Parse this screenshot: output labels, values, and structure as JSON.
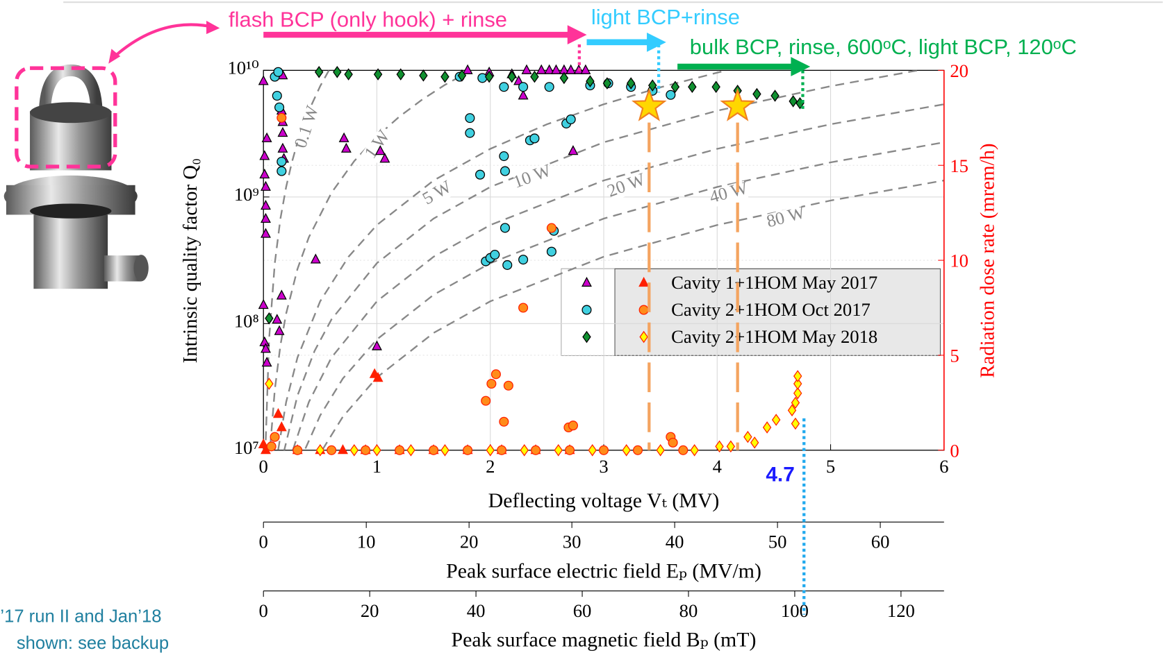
{
  "chart_data": {
    "type": "scatter",
    "yscale": "log",
    "grid": true,
    "xlabel": "Deflecting voltage Vₜ (MV)",
    "ylabel": "Intrinsic quality factor Q₀",
    "y2label": "Radiation dose rate (mrem/h)",
    "xlim": [
      0,
      6
    ],
    "xticks": [
      0,
      1,
      2,
      3,
      4,
      5,
      6
    ],
    "ylim": [
      10000000,
      10000000000
    ],
    "yticks": [
      {
        "value": 10000000,
        "label": "10⁷"
      },
      {
        "value": 100000000,
        "label": "10⁸"
      },
      {
        "value": 1000000000,
        "label": "10⁹"
      },
      {
        "value": 10000000000,
        "label": "10¹⁰"
      }
    ],
    "y2lim": [
      0,
      20
    ],
    "y2ticks": [
      0,
      5,
      10,
      15,
      20
    ],
    "y2color": "#ff0000",
    "secondary_x_axes": [
      {
        "label": "Peak surface electric field Eₚ (MV/m)",
        "lim": [
          0,
          66.2
        ],
        "ticks": [
          0,
          10,
          20,
          30,
          40,
          50,
          60
        ]
      },
      {
        "label": "Peak surface magnetic field Bₚ (mT)",
        "lim": [
          0,
          128.1
        ],
        "ticks": [
          0,
          20,
          40,
          60,
          80,
          100,
          120
        ]
      }
    ],
    "legend": "center right",
    "series": [
      {
        "name": "Cavity 1+1HOM May 2017",
        "marker": "triangle",
        "color": "#cc00cc",
        "x": [
          0,
          0.01,
          0.01,
          0.03,
          0.02,
          0.02,
          0.02,
          0.02,
          0,
          0.01,
          0.02,
          0.03,
          0.12,
          0.16,
          0.14,
          0.17,
          0.16,
          0.17,
          0.17,
          0.17,
          0.18,
          0.46,
          0.71,
          0.73,
          1.03,
          1.07,
          1.0,
          1.8,
          1.99,
          2.19,
          2.25,
          2.29,
          2.32,
          2.45,
          2.52,
          2.58,
          2.65,
          2.71,
          2.78,
          2.84,
          2.73
        ],
        "values": [
          8200000000,
          1500000000,
          2100000000,
          2900000000,
          1200000000,
          850000000,
          670000000,
          510000000,
          140000000,
          71000000,
          63000000,
          49000000,
          107000000,
          166000000,
          87000000,
          9100000000,
          4800000000,
          3900000000,
          3200000000,
          2400000000,
          2000000000,
          320000000,
          2900000000,
          2400000000,
          2300000000,
          2000000000,
          66000000,
          10000000000,
          9600000000,
          9300000000,
          8200000000,
          6300000000,
          10000000000,
          10000000000,
          10000000000,
          10000000000,
          10000000000,
          10000000000,
          10000000000,
          10000000000,
          2300000000
        ]
      },
      {
        "marker": "triangle",
        "color": "#ff2000",
        "axis": "y2",
        "x": [
          0,
          0.02,
          0.13,
          0.16,
          0.98,
          1.01,
          0.3,
          0.5,
          0.7,
          0.9,
          1.2,
          1.5,
          1.8,
          2.1,
          2.4,
          2.7
        ],
        "values": [
          0.3,
          0,
          1.9,
          1.2,
          4.0,
          3.8,
          0,
          0,
          0,
          0,
          0,
          0,
          0,
          0,
          0,
          0
        ]
      },
      {
        "name": "Cavity 2+1HOM Oct 2017",
        "marker": "circle",
        "color": "#40d0e0",
        "x": [
          0.1,
          0.13,
          0.12,
          0.14,
          0.16,
          0.16,
          1.82,
          1.82,
          1.91,
          2.12,
          2.13,
          2.13,
          1.96,
          2.0,
          2.04,
          2.15,
          2.29,
          2.35,
          2.39,
          2.56,
          2.54,
          2.67,
          2.71,
          2.12,
          2.29,
          2.52,
          2.88,
          3.04,
          3.24,
          3.43,
          3.59,
          1.73,
          1.93
        ],
        "values": [
          8900000000,
          9700000000,
          6300000000,
          5100000000,
          1600000000,
          1900000000,
          4200000000,
          3200000000,
          1500000000,
          2100000000,
          1600000000,
          570000000,
          310000000,
          330000000,
          350000000,
          290000000,
          320000000,
          2800000000,
          2900000000,
          540000000,
          370000000,
          3800000000,
          4100000000,
          7400000000,
          7400000000,
          7400000000,
          7600000000,
          7900000000,
          7400000000,
          6900000000,
          6400000000,
          8900000000,
          8700000000
        ]
      },
      {
        "marker": "circle",
        "color": "#ff8c1a",
        "axis": "y2",
        "x": [
          0.16,
          2.54,
          2.29,
          2.05,
          2.01,
          2.16,
          1.96,
          2.12,
          2.69,
          2.73,
          3.59,
          3.61,
          0.1,
          0.07,
          0.3,
          0.6,
          0.9,
          1.2,
          1.5,
          1.8,
          2.1,
          2.4,
          2.7,
          3.0,
          3.3,
          3.7
        ],
        "values": [
          17.5,
          11.7,
          7.5,
          4.0,
          3.5,
          3.4,
          2.6,
          1.5,
          1.2,
          1.3,
          0.7,
          0.4,
          0.7,
          0.2,
          0,
          0,
          0,
          0,
          0,
          0,
          0,
          0,
          0,
          0,
          0,
          0
        ]
      },
      {
        "name": "Cavity 2+1HOM May 2018",
        "marker": "diamond",
        "color": "#109030",
        "x": [
          0.05,
          0.49,
          0.65,
          0.75,
          1.01,
          1.21,
          1.41,
          1.6,
          1.75,
          1.99,
          2.19,
          2.39,
          2.65,
          2.88,
          3.03,
          3.24,
          3.43,
          3.63,
          3.78,
          3.99,
          4.18,
          4.35,
          4.51,
          4.67,
          4.73
        ],
        "values": [
          110000000,
          9700000000,
          9700000000,
          9300000000,
          9300000000,
          9300000000,
          9100000000,
          8900000000,
          9100000000,
          8900000000,
          8900000000,
          8900000000,
          8700000000,
          8200000000,
          7900000000,
          7900000000,
          7600000000,
          7400000000,
          7400000000,
          7400000000,
          6900000000,
          6500000000,
          6300000000,
          5700000000,
          5500000000
        ]
      },
      {
        "marker": "diamond",
        "color": "#ffff00",
        "axis": "y2",
        "x": [
          0.05,
          4.27,
          4.33,
          4.44,
          4.52,
          4.66,
          4.69,
          4.71,
          4.71,
          4.71,
          4.69,
          4.12,
          4.02,
          0.5,
          0.8,
          1.0,
          1.3,
          1.6,
          2.0,
          2.3,
          2.6,
          2.9,
          3.2,
          3.5,
          3.8
        ],
        "values": [
          3.5,
          0.7,
          0.4,
          1.2,
          1.6,
          2.1,
          2.5,
          3.0,
          3.5,
          3.9,
          1.4,
          0.2,
          0.2,
          0,
          0,
          0,
          0,
          0,
          0,
          0,
          0,
          0,
          0,
          0,
          0
        ]
      }
    ],
    "power_curves": [
      {
        "label": "0.1 W",
        "x": [
          0.02,
          0.05,
          0.1,
          0.15,
          0.2,
          0.25,
          0.3,
          0.4,
          0.5,
          0.58
        ],
        "values": [
          12000000,
          75000000,
          300000000,
          675000000,
          1200000000,
          1875000000,
          2700000000,
          4800000000,
          7500000000,
          10100000000
        ]
      },
      {
        "label": "1 W",
        "x": [
          0.06,
          0.1,
          0.15,
          0.2,
          0.3,
          0.4,
          0.6,
          0.8,
          1.0,
          1.2,
          1.4,
          1.6,
          1.83
        ],
        "values": [
          10800000,
          30000000,
          67500000,
          120000000,
          270000000,
          480000000,
          1080000000,
          1920000000,
          3000000000,
          4320000000,
          5880000000,
          7680000000,
          10000000000
        ]
      },
      {
        "label": "5 W",
        "x": [
          0.13,
          0.2,
          0.3,
          0.5,
          0.75,
          1.0,
          1.5,
          2.0,
          2.5,
          3.0,
          3.5,
          4.08
        ],
        "values": [
          10100000,
          24000000,
          54000000,
          150000000,
          337500000,
          600000000,
          1350000000,
          2400000000,
          3750000000,
          5400000000,
          7350000000,
          10000000000
        ]
      },
      {
        "label": "10 W",
        "x": [
          0.18,
          0.3,
          0.45,
          0.6,
          1.0,
          1.5,
          2.0,
          3.0,
          4.0,
          5.0,
          5.77
        ],
        "values": [
          9700000,
          27000000,
          60800000,
          108000000,
          300000000,
          675000000,
          1200000000,
          2700000000,
          4800000000,
          7500000000,
          10000000000
        ]
      },
      {
        "label": "20 W",
        "x": [
          0.26,
          0.4,
          0.6,
          1.0,
          1.5,
          2.0,
          3.0,
          4.0,
          5.0,
          6.0
        ],
        "values": [
          10100000,
          24000000,
          54000000,
          150000000,
          337500000,
          600000000,
          1350000000,
          2400000000,
          3750000000,
          5400000000
        ]
      },
      {
        "label": "40 W",
        "x": [
          0.37,
          0.5,
          0.7,
          1.0,
          1.5,
          2.0,
          3.0,
          4.0,
          5.0,
          6.0
        ],
        "values": [
          10300000,
          18800000,
          36800000,
          75000000,
          168800000,
          300000000,
          675000000,
          1200000000,
          1875000000,
          2700000000
        ]
      },
      {
        "label": "80 W",
        "x": [
          0.52,
          0.7,
          1.0,
          1.5,
          2.0,
          3.0,
          4.0,
          5.0,
          6.0
        ],
        "values": [
          10100000,
          18400000,
          37500000,
          84400000,
          150000000,
          337500000,
          600000000,
          937500000,
          1350000000
        ]
      }
    ],
    "stages": [
      {
        "label": "flash BCP (only hook) + rinse",
        "color": "#ff3399",
        "x_start": 0,
        "x_end": 2.85
      },
      {
        "label": "light BCP+rinse",
        "color": "#33ccff",
        "x_start": 2.85,
        "x_end": 3.55
      },
      {
        "label": "bulk BCP, rinse, 600ᵒC, light BCP, 120ᵒC",
        "color": "#00b050",
        "x_start": 3.65,
        "x_end": 4.82
      }
    ],
    "stars": {
      "x": [
        3.4,
        4.18
      ],
      "values": [
        5200000000,
        5200000000
      ]
    },
    "marker_line": {
      "x": 4.7,
      "color": "#1a1aff"
    },
    "footnote": [
      "’17 run II and Jan’18",
      "shown: see backup"
    ]
  }
}
